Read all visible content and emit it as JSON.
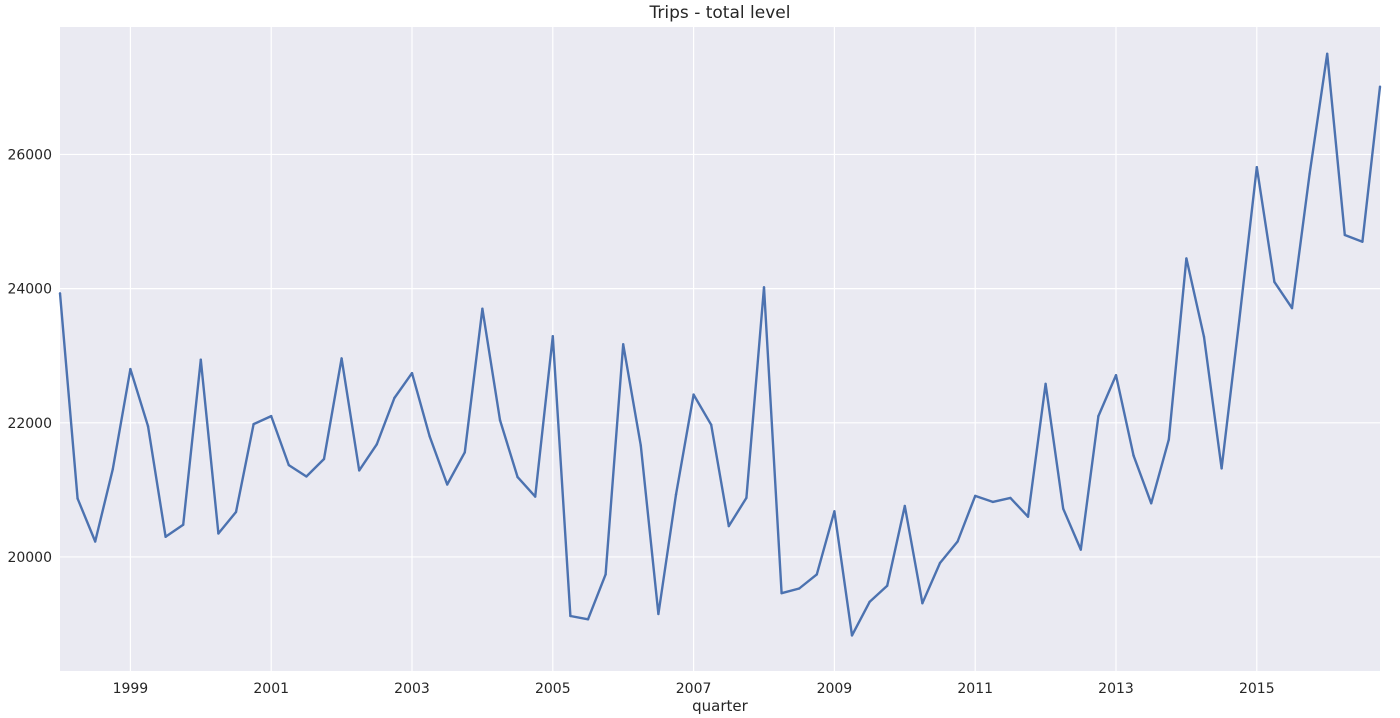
{
  "chart_data": {
    "type": "line",
    "title": "Trips - total level",
    "xlabel": "quarter",
    "ylabel": "",
    "x_start": "1998Q1",
    "x_end": "2016Q4",
    "xticks": [
      "1999",
      "2001",
      "2003",
      "2005",
      "2007",
      "2009",
      "2011",
      "2013",
      "2015"
    ],
    "yticks": [
      20000,
      22000,
      24000,
      26000
    ],
    "ylim": [
      18300,
      27900
    ],
    "grid": true,
    "colors": {
      "background": "#eaeaf2",
      "grid": "#ffffff",
      "line": "#4c72b0"
    },
    "series": [
      {
        "x": [
          "1998Q1",
          "1998Q2",
          "1998Q3",
          "1998Q4",
          "1999Q1",
          "1999Q2",
          "1999Q3",
          "1999Q4",
          "2000Q1",
          "2000Q2",
          "2000Q3",
          "2000Q4",
          "2001Q1",
          "2001Q2",
          "2001Q3",
          "2001Q4",
          "2002Q1",
          "2002Q2",
          "2002Q3",
          "2002Q4",
          "2003Q1",
          "2003Q2",
          "2003Q3",
          "2003Q4",
          "2004Q1",
          "2004Q2",
          "2004Q3",
          "2004Q4",
          "2005Q1",
          "2005Q2",
          "2005Q3",
          "2005Q4",
          "2006Q1",
          "2006Q2",
          "2006Q3",
          "2006Q4",
          "2007Q1",
          "2007Q2",
          "2007Q3",
          "2007Q4",
          "2008Q1",
          "2008Q2",
          "2008Q3",
          "2008Q4",
          "2009Q1",
          "2009Q2",
          "2009Q3",
          "2009Q4",
          "2010Q1",
          "2010Q2",
          "2010Q3",
          "2010Q4",
          "2011Q1",
          "2011Q2",
          "2011Q3",
          "2011Q4",
          "2012Q1",
          "2012Q2",
          "2012Q3",
          "2012Q4",
          "2013Q1",
          "2013Q2",
          "2013Q3",
          "2013Q4",
          "2014Q1",
          "2014Q2",
          "2014Q3",
          "2014Q4",
          "2015Q1",
          "2015Q2",
          "2015Q3",
          "2015Q4",
          "2016Q1",
          "2016Q2",
          "2016Q3",
          "2016Q4"
        ],
        "values": [
          23930,
          20870,
          20230,
          21310,
          22800,
          21950,
          20300,
          20480,
          22940,
          20350,
          20670,
          21980,
          22100,
          21370,
          21200,
          21460,
          22960,
          21290,
          21680,
          22370,
          22740,
          21800,
          21080,
          21560,
          23700,
          22040,
          21190,
          20900,
          23290,
          19120,
          19070,
          19740,
          23170,
          21660,
          19150,
          20930,
          22420,
          21970,
          20460,
          20880,
          24020,
          19460,
          19530,
          19740,
          20680,
          18830,
          19330,
          19570,
          20760,
          19310,
          19910,
          20230,
          20910,
          20820,
          20880,
          20600,
          22580,
          20720,
          20110,
          22100,
          22710,
          21510,
          20800,
          21750,
          24450,
          23280,
          21320,
          23520,
          25810,
          24100,
          23710,
          25710,
          27500,
          24800,
          24700,
          27010
        ]
      }
    ]
  }
}
